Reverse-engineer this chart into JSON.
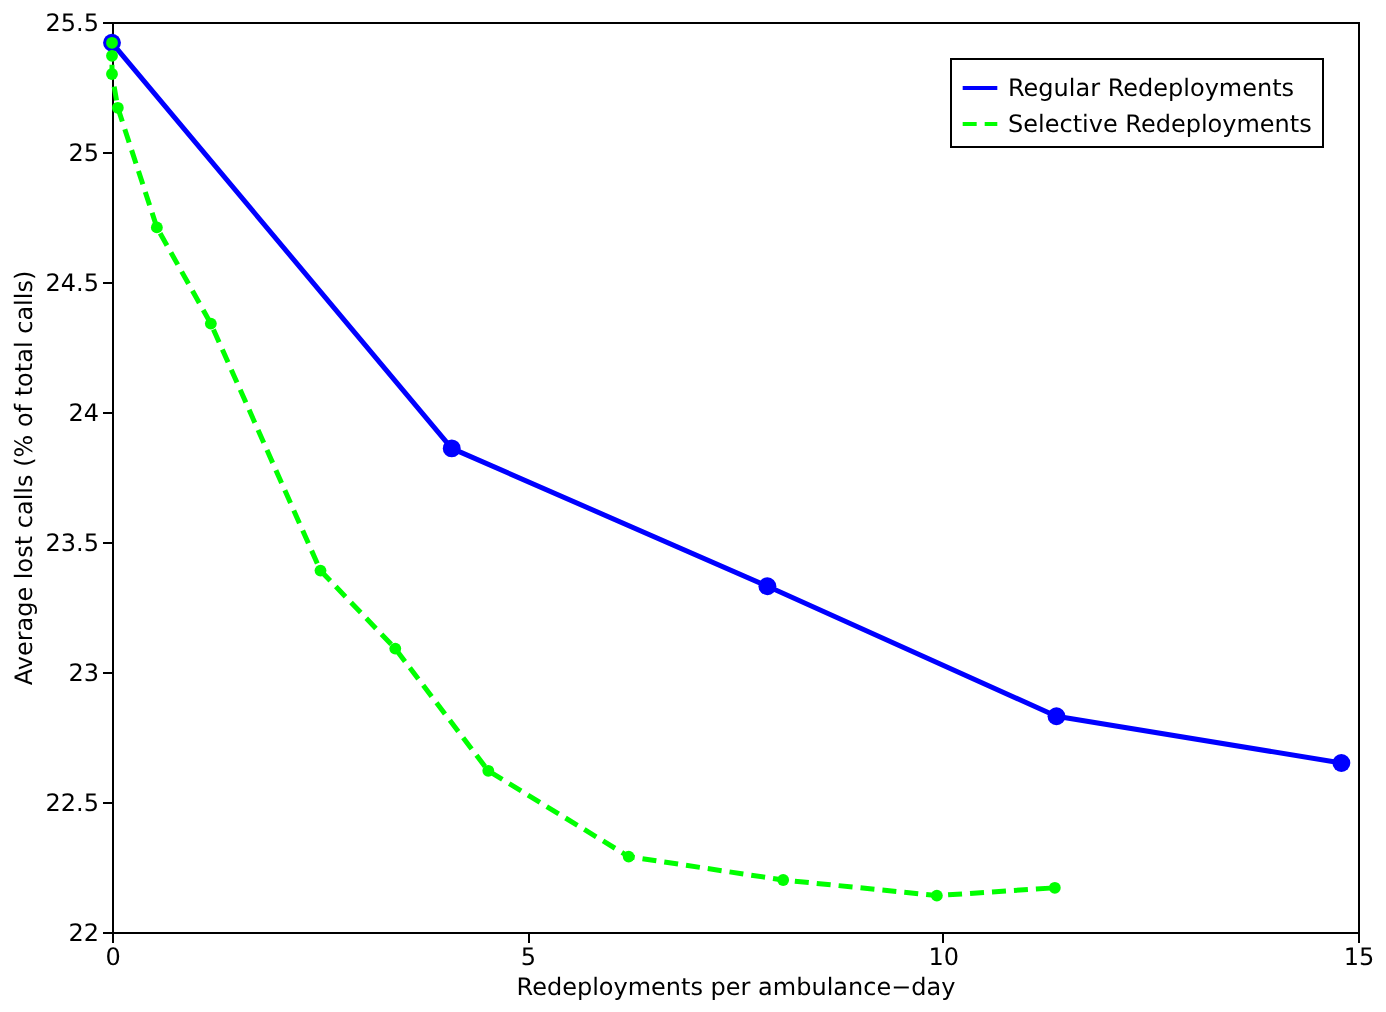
{
  "chart_data": {
    "type": "line",
    "xlabel": "Redeployments per ambulance−day",
    "ylabel": "Average lost calls (% of total calls)",
    "xlim": [
      0,
      15
    ],
    "xticks": [
      0,
      5,
      10,
      15
    ],
    "ylim": [
      22,
      25.5
    ],
    "yticks": [
      22,
      22.5,
      23,
      23.5,
      24,
      24.5,
      25,
      25.5
    ],
    "grid": false,
    "legend": "top right",
    "marker": "circle",
    "series": [
      {
        "name": "Regular Redeployments",
        "color": "#0000ff",
        "line_style": "solid",
        "x": [
          0,
          4.09,
          7.89,
          11.37,
          14.8
        ],
        "values": [
          25.42,
          23.86,
          23.33,
          22.83,
          22.65
        ]
      },
      {
        "name": "Selective Redeployments",
        "color": "#00ff00",
        "line_style": "dashed",
        "x": [
          0,
          0,
          0,
          0.07,
          0.54,
          1.19,
          2.51,
          3.41,
          4.53,
          6.22,
          8.08,
          9.93,
          11.35
        ],
        "values": [
          25.42,
          25.37,
          25.3,
          25.17,
          24.71,
          24.34,
          23.39,
          23.09,
          22.62,
          22.29,
          22.2,
          22.14,
          22.17
        ]
      }
    ]
  }
}
